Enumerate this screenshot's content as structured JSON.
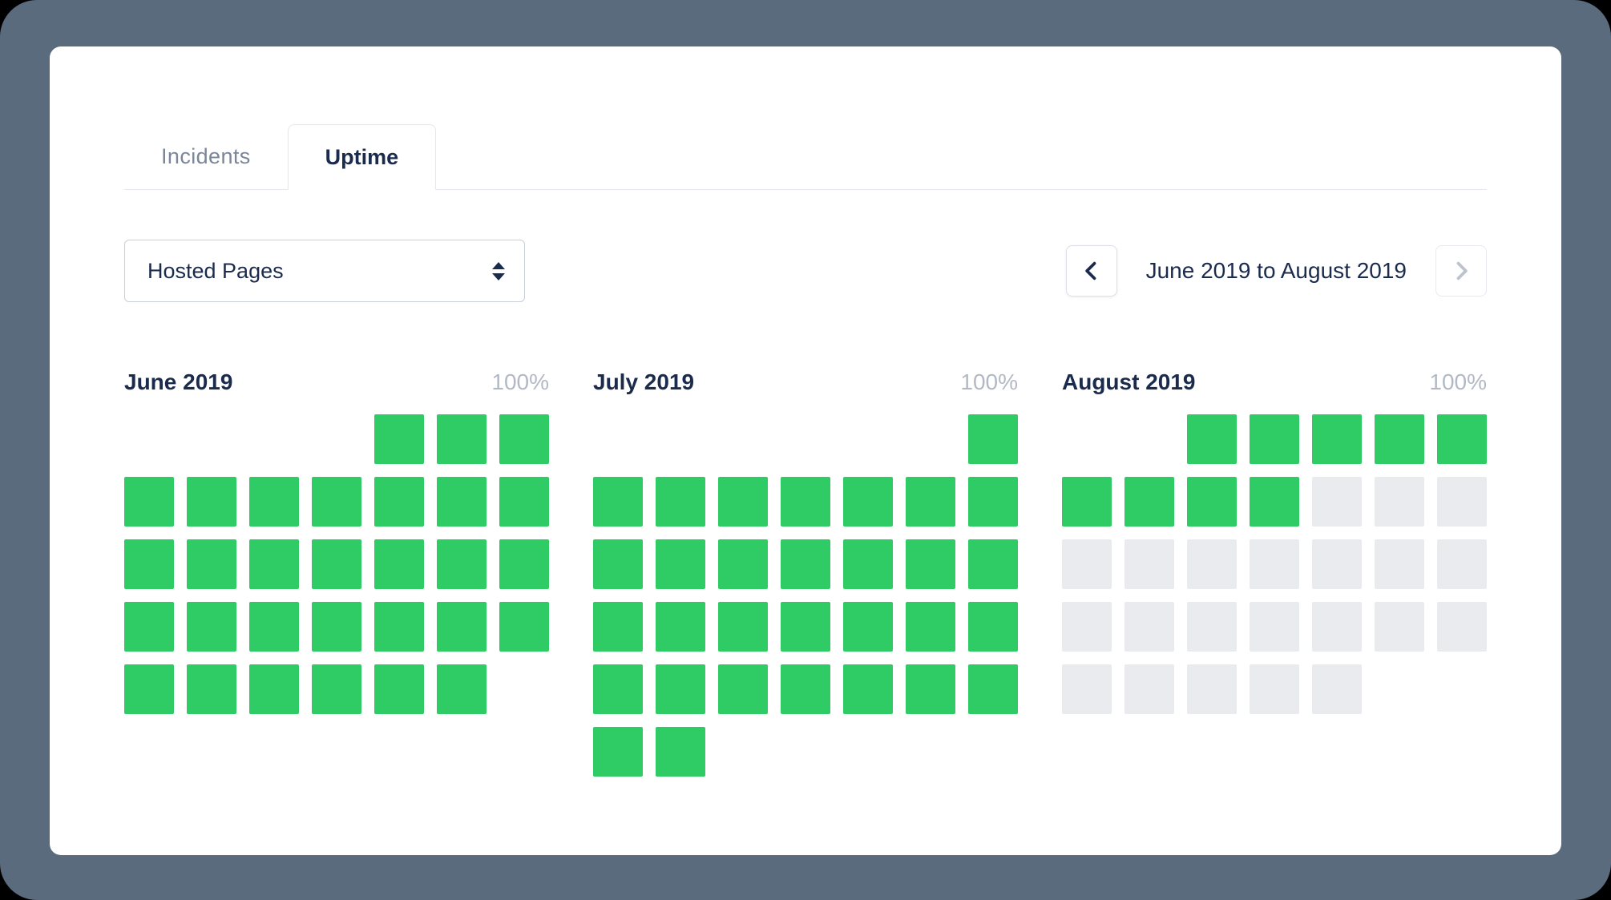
{
  "page": {
    "background": "#000000",
    "frame_color": "#5b6b7e"
  },
  "tabs": [
    {
      "label": "Incidents",
      "active": false
    },
    {
      "label": "Uptime",
      "active": true
    }
  ],
  "controls": {
    "service_selector": {
      "value": "Hosted Pages"
    },
    "date_range": {
      "label": "June 2019 to August 2019",
      "prev_icon": "chevron-left",
      "next_icon": "chevron-right"
    }
  },
  "colors": {
    "uptime_green": "#2fcc66",
    "future_gray": "#e9ebee",
    "navy_text": "#1b2b4d",
    "muted_text": "#7b8698",
    "percent_text": "#b2b9c4"
  },
  "legend": {
    "cell_states": {
      "g": "up (100% uptime day)",
      "f": "future day",
      "e": "empty placeholder"
    }
  },
  "months": [
    {
      "title": "June 2019",
      "uptime": "100%",
      "rows": [
        "eeeeggg",
        "ggggggg",
        "ggggggg",
        "ggggggg",
        "gggggge"
      ]
    },
    {
      "title": "July 2019",
      "uptime": "100%",
      "rows": [
        "eeeeeeg",
        "ggggggg",
        "ggggggg",
        "ggggggg",
        "ggggggg",
        "ggeeeee"
      ]
    },
    {
      "title": "August 2019",
      "uptime": "100%",
      "rows": [
        "eeggggg",
        "ggggfff",
        "fffffff",
        "fffffff",
        "fffffee"
      ]
    }
  ]
}
